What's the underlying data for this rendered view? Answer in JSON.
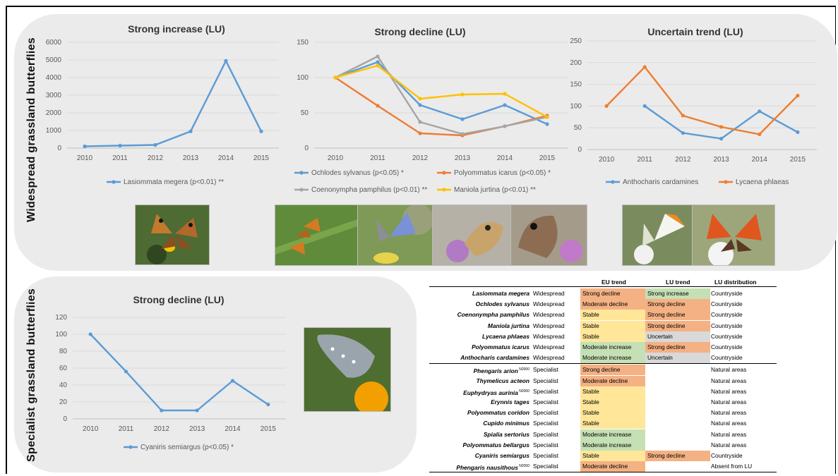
{
  "groups": {
    "top": "Widespread grassland butterflies",
    "bottom": "Specialist grassland butterflies"
  },
  "colors": {
    "blue": "#5b9bd5",
    "orange": "#ed7d31",
    "gray": "#a5a5a5",
    "yellow": "#ffc000",
    "red": "#f4b183",
    "green": "#c5e0b4",
    "amber": "#ffe699",
    "neutral": "#d9d9d9"
  },
  "chart_data": [
    {
      "type": "line",
      "title": "Strong increase (LU)",
      "x": [
        "2010",
        "2011",
        "2012",
        "2013",
        "2014",
        "2015"
      ],
      "ylim": [
        0,
        6000
      ],
      "yticks": [
        "0",
        "1000",
        "2000",
        "3000",
        "4000",
        "5000",
        "6000"
      ],
      "series": [
        {
          "name": "Lasiommata megera (p<0.01) **",
          "color": "#5b9bd5",
          "values": [
            100,
            140,
            180,
            950,
            4950,
            950
          ]
        }
      ]
    },
    {
      "type": "line",
      "title": "Strong decline (LU)",
      "x": [
        "2010",
        "2011",
        "2012",
        "2013",
        "2014",
        "2015"
      ],
      "ylim": [
        0,
        150
      ],
      "yticks": [
        "0",
        "50",
        "100",
        "150"
      ],
      "series": [
        {
          "name": "Ochlodes sylvanus (p<0.05) *",
          "color": "#5b9bd5",
          "values": [
            100,
            122,
            61,
            41,
            61,
            34
          ]
        },
        {
          "name": "Polyommatus icarus (p<0.05) *",
          "color": "#ed7d31",
          "values": [
            100,
            60,
            21,
            18,
            31,
            46
          ]
        },
        {
          "name": "Coenonympha pamphilus (p<0.01) **",
          "color": "#a5a5a5",
          "values": [
            100,
            130,
            37,
            20,
            31,
            44
          ]
        },
        {
          "name": "Maniola jurtina (p<0.01) **",
          "color": "#ffc000",
          "values": [
            100,
            117,
            70,
            76,
            77,
            44
          ]
        }
      ]
    },
    {
      "type": "line",
      "title": "Uncertain trend (LU)",
      "x": [
        "2010",
        "2011",
        "2012",
        "2013",
        "2014",
        "2015"
      ],
      "ylim": [
        0,
        250
      ],
      "yticks": [
        "0",
        "50",
        "100",
        "150",
        "200",
        "250"
      ],
      "series": [
        {
          "name": "Anthocharis cardamines",
          "color": "#5b9bd5",
          "values": [
            null,
            100,
            38,
            25,
            88,
            40
          ]
        },
        {
          "name": "Lycaena phlaeas",
          "color": "#ed7d31",
          "values": [
            100,
            190,
            78,
            52,
            35,
            124
          ]
        }
      ]
    },
    {
      "type": "line",
      "title": "Strong decline (LU)",
      "x": [
        "2010",
        "2011",
        "2012",
        "2013",
        "2014",
        "2015"
      ],
      "ylim": [
        0,
        120
      ],
      "yticks": [
        "0",
        "20",
        "40",
        "60",
        "80",
        "100",
        "120"
      ],
      "series": [
        {
          "name": "Cyaniris semiargus (p<0.05) *",
          "color": "#5b9bd5",
          "values": [
            100,
            56,
            10,
            10,
            45,
            17
          ]
        }
      ]
    }
  ],
  "table": {
    "headers": {
      "eu": "EU trend",
      "lu": "LU trend",
      "dist": "LU distribution"
    },
    "rows": [
      {
        "name": "Lasiommata megera",
        "sup": "",
        "type": "Widespread",
        "eu": "Strong decline",
        "eu_c": "red",
        "lu": "Strong increase",
        "lu_c": "green",
        "dist": "Countryside"
      },
      {
        "name": "Ochlodes sylvanus",
        "sup": "",
        "type": "Widespread",
        "eu": "Moderate decline",
        "eu_c": "red",
        "lu": "Strong decline",
        "lu_c": "red",
        "dist": "Countryside"
      },
      {
        "name": "Coenonympha pamphilus",
        "sup": "",
        "type": "Widespread",
        "eu": "Stable",
        "eu_c": "amber",
        "lu": "Strong decline",
        "lu_c": "red",
        "dist": "Countryside"
      },
      {
        "name": "Maniola jurtina",
        "sup": "",
        "type": "Widespread",
        "eu": "Stable",
        "eu_c": "amber",
        "lu": "Strong decline",
        "lu_c": "red",
        "dist": "Countryside"
      },
      {
        "name": "Lycaena phlaeas",
        "sup": "",
        "type": "Widespread",
        "eu": "Stable",
        "eu_c": "amber",
        "lu": "Uncertain",
        "lu_c": "neutral",
        "dist": "Countryside"
      },
      {
        "name": "Polyommatus icarus",
        "sup": "",
        "type": "Widespread",
        "eu": "Moderate increase",
        "eu_c": "green",
        "lu": "Strong decline",
        "lu_c": "red",
        "dist": "Countryside"
      },
      {
        "name": "Anthocharis cardamines",
        "sup": "",
        "type": "Widespread",
        "eu": "Moderate increase",
        "eu_c": "green",
        "lu": "Uncertain",
        "lu_c": "neutral",
        "dist": "Countryside"
      },
      {
        "name": "Phengaris arion",
        "sup": "N2000",
        "type": "Specialist",
        "eu": "Strong decline",
        "eu_c": "red",
        "lu": "",
        "lu_c": "",
        "dist": "Natural areas"
      },
      {
        "name": "Thymelicus acteon",
        "sup": "",
        "type": "Specialist",
        "eu": "Moderate decline",
        "eu_c": "red",
        "lu": "",
        "lu_c": "",
        "dist": "Natural areas"
      },
      {
        "name": "Euphydryas aurinia",
        "sup": "N2000",
        "type": "Specialist",
        "eu": "Stable",
        "eu_c": "amber",
        "lu": "",
        "lu_c": "",
        "dist": "Natural areas"
      },
      {
        "name": "Erynnis tages",
        "sup": "",
        "type": "Specialist",
        "eu": "Stable",
        "eu_c": "amber",
        "lu": "",
        "lu_c": "",
        "dist": "Natural areas"
      },
      {
        "name": "Polyommatus coridon",
        "sup": "",
        "type": "Specialist",
        "eu": "Stable",
        "eu_c": "amber",
        "lu": "",
        "lu_c": "",
        "dist": "Natural areas"
      },
      {
        "name": "Cupido minimus",
        "sup": "",
        "type": "Specialist",
        "eu": "Stable",
        "eu_c": "amber",
        "lu": "",
        "lu_c": "",
        "dist": "Natural areas"
      },
      {
        "name": "Spialia sertorius",
        "sup": "",
        "type": "Specialist",
        "eu": "Moderate increase",
        "eu_c": "green",
        "lu": "",
        "lu_c": "",
        "dist": "Natural areas"
      },
      {
        "name": "Polyommatus bellargus",
        "sup": "",
        "type": "Specialist",
        "eu": "Moderate increase",
        "eu_c": "green",
        "lu": "",
        "lu_c": "",
        "dist": "Natural areas"
      },
      {
        "name": "Cyaniris semiargus",
        "sup": "",
        "type": "Specialist",
        "eu": "Stable",
        "eu_c": "amber",
        "lu": "Strong decline",
        "lu_c": "red",
        "dist": "Countryside"
      },
      {
        "name": "Phengaris nausithous",
        "sup": "N2000",
        "type": "Specialist",
        "eu": "Moderate decline",
        "eu_c": "red",
        "lu": "",
        "lu_c": "",
        "dist": "Absent from LU"
      }
    ]
  }
}
